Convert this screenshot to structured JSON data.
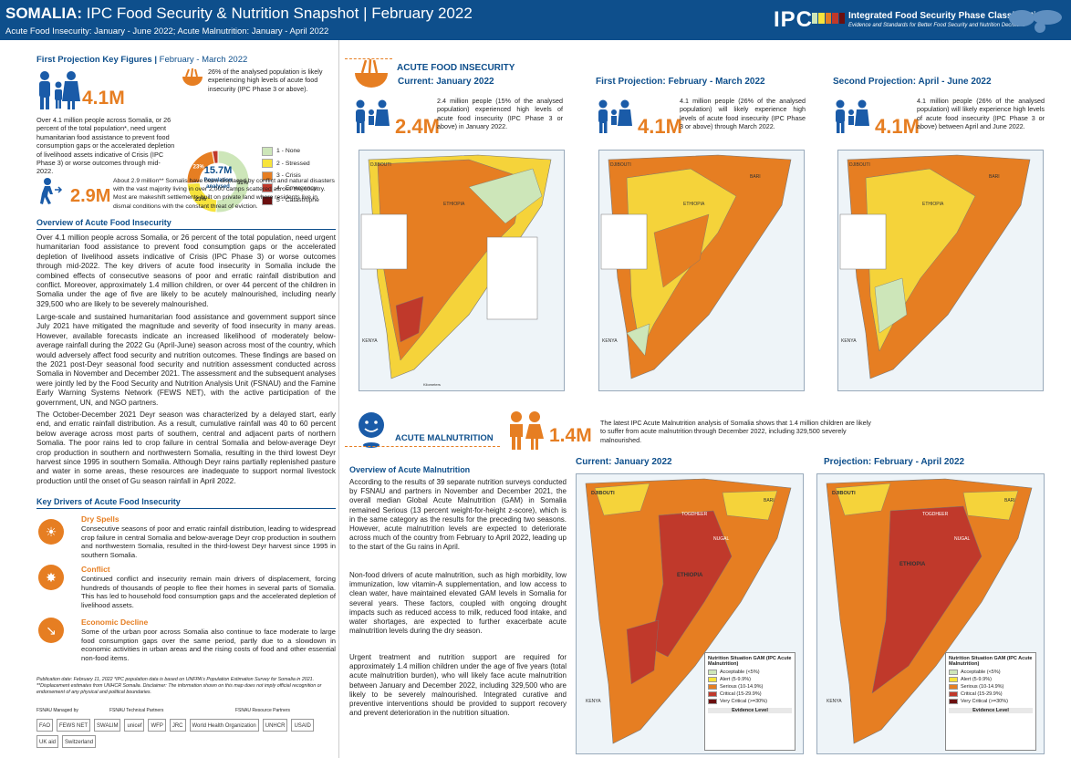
{
  "header": {
    "title_country": "SOMALIA:",
    "title_rest": " IPC Food Security & Nutrition Snapshot | February 2022",
    "subtitle": "Acute Food Insecurity: January - June 2022; Acute Malnutrition: January - April 2022",
    "ipc_logo": "IPC",
    "ipc_name": "Integrated Food Security Phase Classification",
    "ipc_tagline": "Evidence and Standards for Better Food Security and Nutrition Decisions"
  },
  "first_projection": {
    "heading_bold": "First Projection Key Figures | ",
    "heading_rest": "February - March 2022",
    "big_number": "4.1M",
    "description": "Over 4.1 million people across Somalia, or 26 percent of the total population*, need urgent humanitarian food assistance to prevent food consumption gaps or the accelerated depletion of livelihood assets indicative of Crisis (IPC Phase 3) or worse outcomes through mid-2022.",
    "donut_note": "26% of the analysed population is likely experiencing high levels of acute food insecurity (IPC Phase 3 or above).",
    "donut_center_value": "15.7M",
    "donut_center_label": "Population analysed",
    "donut_slices": [
      {
        "label": "51%",
        "value": 51,
        "color": "#cde6b9"
      },
      {
        "label": "23%",
        "value": 23,
        "color": "#f7e43c"
      },
      {
        "label": "23%",
        "value": 23,
        "color": "#e67e22"
      },
      {
        "label": "3%",
        "value": 3,
        "color": "#c0392b"
      }
    ],
    "phases": [
      {
        "label": "1 - None",
        "color": "#cde6b9"
      },
      {
        "label": "2 - Stressed",
        "color": "#f7e43c"
      },
      {
        "label": "3 - Crisis",
        "color": "#e67e22"
      },
      {
        "label": "4 - Emergency",
        "color": "#c0392b"
      },
      {
        "label": "5 - Catastrophe",
        "color": "#6b0f0f"
      }
    ],
    "displaced_number": "2.9M",
    "displaced_text": "About 2.9 million** Somalis have been displaced by conflict and natural disasters with the vast majority living in over 2,000 camps scattered across the country. Most are makeshift settlements built on private land where residents live in dismal conditions with the constant threat of eviction."
  },
  "overview": {
    "heading": "Overview of Acute Food Insecurity",
    "p1": "Over 4.1 million people across Somalia, or 26 percent of the total population, need urgent humanitarian food assistance to prevent food consumption gaps or the accelerated depletion of livelihood assets indicative of Crisis (IPC Phase 3) or worse outcomes through mid-2022. The key drivers of acute food insecurity in Somalia include the combined effects of consecutive seasons of poor and erratic rainfall distribution and conflict. Moreover, approximately 1.4 million children, or over 44 percent of the children in Somalia under the age of five are likely to be acutely malnourished, including nearly 329,500 who are likely to be severely malnourished.",
    "p2": "Large-scale and sustained humanitarian food assistance and government support since July 2021 have mitigated the magnitude and severity of food insecurity in many areas. However, available forecasts indicate an increased likelihood of moderately below-average rainfall during the 2022 Gu (April-June) season across most of the country, which would adversely affect food security and nutrition outcomes. These findings are based on the 2021 post-Deyr seasonal food security and nutrition assessment conducted across Somalia in November and December 2021. The assessment and the subsequent analyses were jointly led by the Food Security and Nutrition Analysis Unit (FSNAU) and the Famine Early Warning Systems Network (FEWS NET), with the active participation of the government, UN, and NGO partners.",
    "p3": "The October-December 2021 Deyr season was characterized by a delayed start, early end, and erratic rainfall distribution. As a result, cumulative rainfall was 40 to 60 percent below average across most parts of southern, central and adjacent parts of northern Somalia. The poor rains led to crop failure in central Somalia and below-average Deyr crop production in southern and northwestern Somalia, resulting in the third lowest Deyr harvest since 1995 in southern Somalia. Although Deyr rains partially replenished pasture and water in some areas, these resources are inadequate to support normal livestock production until the onset of Gu season rainfall in April 2022."
  },
  "drivers": {
    "heading": "Key Drivers of Acute Food Insecurity",
    "items": [
      {
        "title": "Dry Spells",
        "icon": "☀",
        "text": "Consecutive seasons of poor and erratic rainfall distribution, leading to widespread crop failure in central Somalia and below-average Deyr crop production in southern and northwestern Somalia, resulted in the third-lowest Deyr harvest since 1995 in southern Somalia."
      },
      {
        "title": "Conflict",
        "icon": "✸",
        "text": "Continued conflict and insecurity remain main drivers of displacement, forcing hundreds of thousands of people to flee their homes in several parts of Somalia. This has led to household food consumption gaps and the accelerated depletion of livelihood assets."
      },
      {
        "title": "Economic Decline",
        "icon": "↘",
        "text": "Some of the urban poor across Somalia also continue to face moderate to large food consumption gaps over the same period, partly due to a slowdown in economic activities in urban areas and the rising costs of food and other essential non-food items."
      }
    ]
  },
  "footer": {
    "note": "Publication date: February 11, 2022 *IPC population data is based on UNFPA's Population Estimation Survey for Somalia in 2021. **Displacement estimates from UNHCR Somalia. Disclaimer: The information shown on this map does not imply official recognition or endorsement of any physical and political boundaries.",
    "managed_by": "FSNAU Managed by",
    "technical_partners": "FSNAU Technical Partners",
    "resource_partners": "FSNAU Resource Partners",
    "logos": [
      "FAO",
      "FEWS NET",
      "SWALIM",
      "unicef",
      "WFP",
      "JRC",
      "World Health Organization",
      "UNHCR",
      "USAID",
      "UK aid",
      "Switzerland"
    ]
  },
  "afi": {
    "heading": "ACUTE FOOD INSECURITY",
    "panels": [
      {
        "title": "Current: January 2022",
        "number": "2.4M",
        "text": "2.4 million people (15% of the analysed population) experienced high levels of acute food insecurity (IPC Phase 3 or above) in January 2022."
      },
      {
        "title": "First Projection: February - March 2022",
        "number": "4.1M",
        "text": "4.1 million people (26% of the analysed population) will likely experience high levels of acute food insecurity (IPC Phase 3 or above) through March 2022."
      },
      {
        "title": "Second Projection: April - June 2022",
        "number": "4.1M",
        "text": "4.1 million people (26% of the analysed population) will likely experience high levels of acute food insecurity (IPC Phase 3 or above) between April and June 2022."
      }
    ],
    "map_labels": {
      "djibouti": "DJIBOUTI",
      "ethiopia": "ETHIOPIA",
      "kenya": "KENYA",
      "bari": "BARI",
      "km": "Kilometers"
    }
  },
  "amn": {
    "heading": "ACUTE MALNUTRITION",
    "number": "1.4M",
    "text": "The latest IPC Acute Malnutrition analysis of Somalia shows that 1.4 million children are likely to suffer from acute malnutrition through December 2022, including 329,500 severely malnourished.",
    "overview_heading": "Overview of Acute Malnutrition",
    "p1": "According to the results of 39 separate nutrition surveys conducted by FSNAU and partners in November and December 2021, the overall median Global Acute Malnutrition (GAM) in Somalia remained Serious (13 percent weight-for-height z-score), which is in the same category as the results for the preceding two seasons. However, acute malnutrition levels are expected to deteriorate across much of the country from February to April 2022, leading up to the start of the Gu rains in April.",
    "p2": "Non-food drivers of acute malnutrition, such as high morbidity, low immunization, low vitamin-A supplementation, and low access to clean water, have maintained elevated GAM levels in Somalia for several years. These factors, coupled with ongoing drought impacts such as reduced access to milk, reduced food intake, and water shortages, are expected to further exacerbate acute malnutrition levels during the dry season.",
    "p3": "Urgent treatment and nutrition support are required for approximately 1.4 million children under the age of five years (total acute malnutrition burden), who will likely face acute malnutrition between January and December 2022, including 329,500 who are likely to be severely malnourished. Integrated curative and preventive interventions should be provided to support recovery and prevent deterioration in the nutrition situation.",
    "panels": [
      {
        "title": "Current: January 2022"
      },
      {
        "title": "Projection: February - April 2022"
      }
    ],
    "legend_title": "Nutrition Situation GAM (IPC Acute Malnutrition)",
    "legend_rows": [
      {
        "label": "Acceptable (<5%)",
        "color": "#cde6b9"
      },
      {
        "label": "Alert (5-9.9%)",
        "color": "#f7e43c"
      },
      {
        "label": "Serious (10-14.9%)",
        "color": "#e67e22"
      },
      {
        "label": "Critical (15-29.9%)",
        "color": "#c0392b"
      },
      {
        "label": "Very Critical (>=30%)",
        "color": "#6b0f0f"
      }
    ],
    "evidence_level": "Evidence Level",
    "map_labels": {
      "djibouti": "DJIBOUTI",
      "ethiopia": "ETHIOPIA",
      "kenya": "KENYA",
      "togdheer": "TOGDHEER",
      "nugal": "NUGAL",
      "bari": "BARI"
    }
  }
}
